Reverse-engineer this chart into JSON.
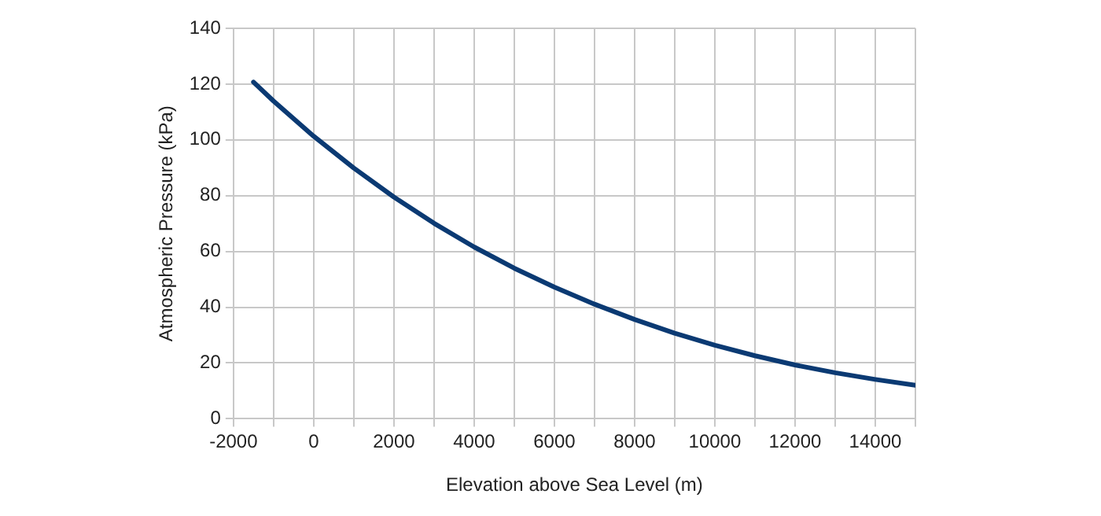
{
  "chart_data": {
    "type": "line",
    "xlabel": "Elevation above Sea Level (m)",
    "ylabel": "Atmospheric Pressure (kPa)",
    "x": [
      -1500,
      -1000,
      0,
      1000,
      2000,
      3000,
      4000,
      5000,
      6000,
      7000,
      8000,
      9000,
      10000,
      11000,
      12000,
      13000,
      14000,
      15000
    ],
    "series": [
      {
        "color": "#0b3a73",
        "values": [
          120.7,
          113.9,
          101.3,
          89.9,
          79.5,
          70.1,
          61.6,
          54.0,
          47.2,
          41.1,
          35.6,
          30.7,
          26.4,
          22.6,
          19.3,
          16.5,
          14.1,
          12.0
        ]
      }
    ],
    "xlim": [
      -2000,
      15000
    ],
    "xticks": [
      -2000,
      {
        "value": -1000,
        "label": null
      },
      0,
      {
        "value": 1000,
        "label": null
      },
      2000,
      {
        "value": 3000,
        "label": null
      },
      4000,
      {
        "value": 5000,
        "label": null
      },
      6000,
      {
        "value": 7000,
        "label": null
      },
      8000,
      {
        "value": 9000,
        "label": null
      },
      10000,
      {
        "value": 11000,
        "label": null
      },
      12000,
      {
        "value": 13000,
        "label": null
      },
      14000,
      {
        "value": 15000,
        "label": null
      }
    ],
    "ylim": [
      0,
      140
    ],
    "yticks": [
      0,
      20,
      40,
      60,
      80,
      100,
      120,
      140
    ],
    "grid": true,
    "legend": false,
    "marker": "none",
    "line_style": "solid"
  }
}
